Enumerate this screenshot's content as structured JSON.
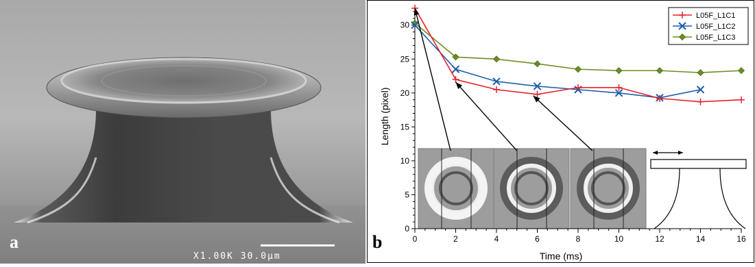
{
  "panel_a": {
    "label": "a",
    "scale_text": "X1.00K  30.0μm"
  },
  "panel_b": {
    "label": "b"
  },
  "chart_data": {
    "type": "line",
    "xlabel": "Time (ms)",
    "ylabel": "Length (pixel)",
    "xlim": [
      0,
      16
    ],
    "ylim": [
      0,
      33
    ],
    "x_major_ticks": [
      "0",
      "2",
      "4",
      "6",
      "8",
      "10",
      "12",
      "14",
      "16"
    ],
    "y_major_ticks": [
      "0",
      "5",
      "10",
      "15",
      "20",
      "25",
      "30"
    ],
    "legend_position": "top-right",
    "grid": false,
    "series": [
      {
        "name": "L05F_L1C1",
        "color": "#e8202a",
        "marker": "plus",
        "x": [
          0,
          2,
          4,
          6,
          8,
          10,
          12,
          14,
          16
        ],
        "y": [
          32.5,
          22.0,
          20.5,
          19.8,
          20.8,
          20.8,
          19.2,
          18.7,
          19.0
        ]
      },
      {
        "name": "L05F_L1C2",
        "color": "#1f5fa8",
        "marker": "x",
        "x": [
          0,
          2,
          4,
          6,
          8,
          10,
          12,
          14
        ],
        "y": [
          30.0,
          23.5,
          21.7,
          21.0,
          20.5,
          20.0,
          19.3,
          20.5
        ]
      },
      {
        "name": "L05F_L1C3",
        "color": "#6b8e23",
        "marker": "diamond",
        "x": [
          0,
          2,
          4,
          6,
          8,
          10,
          12,
          14,
          16
        ],
        "y": [
          30.3,
          25.3,
          25.0,
          24.3,
          23.5,
          23.3,
          23.3,
          23.0,
          23.3
        ]
      }
    ],
    "annotations": [
      {
        "from": [
          1.75,
          11.5
        ],
        "to": [
          0,
          32.5
        ]
      },
      {
        "from": [
          5.0,
          11.5
        ],
        "to": [
          2,
          21.6
        ]
      },
      {
        "from": [
          8.7,
          11.5
        ],
        "to": [
          5.8,
          19.6
        ]
      }
    ]
  }
}
